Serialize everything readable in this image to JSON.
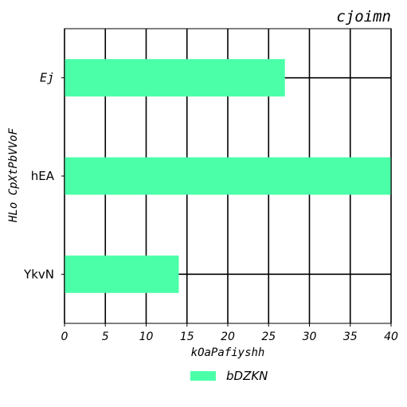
{
  "chart_data": {
    "type": "bar",
    "orientation": "horizontal",
    "title": "cjoimn",
    "xlabel": "kOaPafiyshh",
    "ylabel": "HLo CpXtPbVVoF",
    "categories": [
      "Ej",
      "hEA",
      "YkvN"
    ],
    "series": [
      {
        "name": "bDZKN",
        "values": [
          27,
          40,
          14
        ],
        "color": "#4bffa9"
      }
    ],
    "xlim": [
      0,
      40
    ],
    "xticks": [
      "0",
      "5",
      "10",
      "15",
      "20",
      "25",
      "30",
      "35",
      "40"
    ],
    "grid": true,
    "legend_position": "bottom-center"
  }
}
